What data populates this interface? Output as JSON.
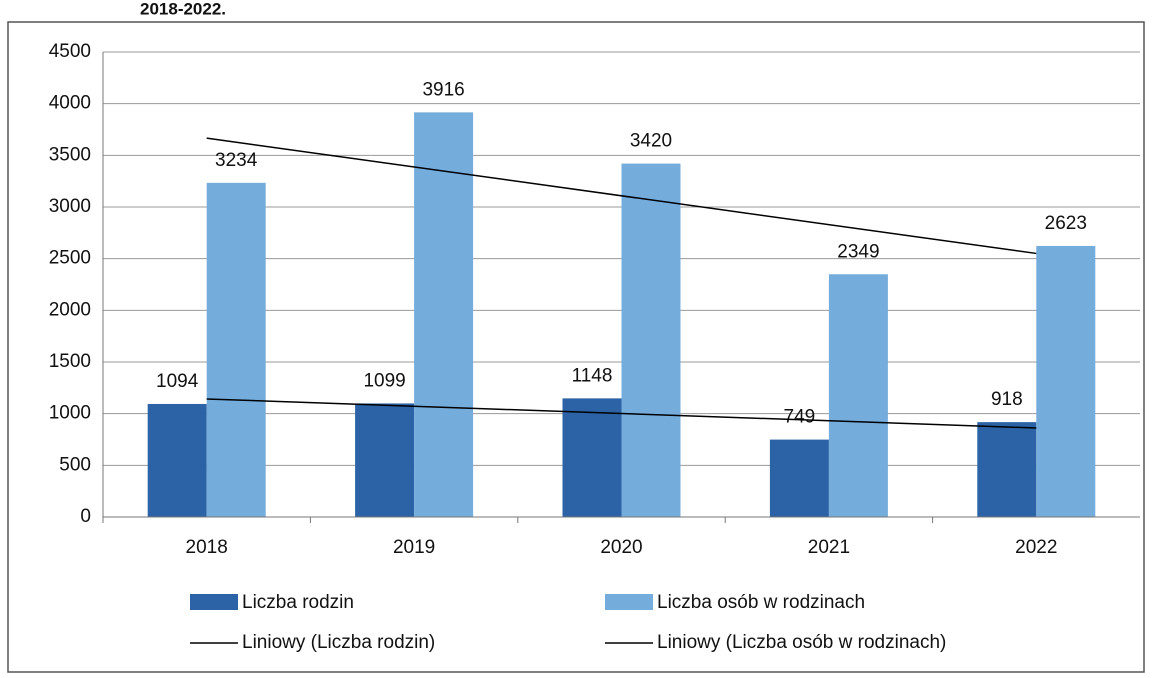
{
  "chart_data": {
    "type": "bar",
    "title": "2018-2022.",
    "categories": [
      "2018",
      "2019",
      "2020",
      "2021",
      "2022"
    ],
    "series": [
      {
        "name": "Liczba rodzin",
        "color": "#2b63a6",
        "values": [
          1094,
          1099,
          1148,
          749,
          918
        ]
      },
      {
        "name": "Liczba osób w rodzinach",
        "color": "#74acdc",
        "values": [
          3234,
          3916,
          3420,
          2349,
          2623
        ]
      }
    ],
    "trendlines": [
      {
        "name": "Liniowy (Liczba rodzin)",
        "series": 0,
        "color": "#000000"
      },
      {
        "name": "Liniowy (Liczba osób w rodzinach)",
        "series": 1,
        "color": "#000000"
      }
    ],
    "ylim": [
      0,
      4500
    ],
    "yticks": [
      0,
      500,
      1000,
      1500,
      2000,
      2500,
      3000,
      3500,
      4000,
      4500
    ],
    "grid": true
  }
}
